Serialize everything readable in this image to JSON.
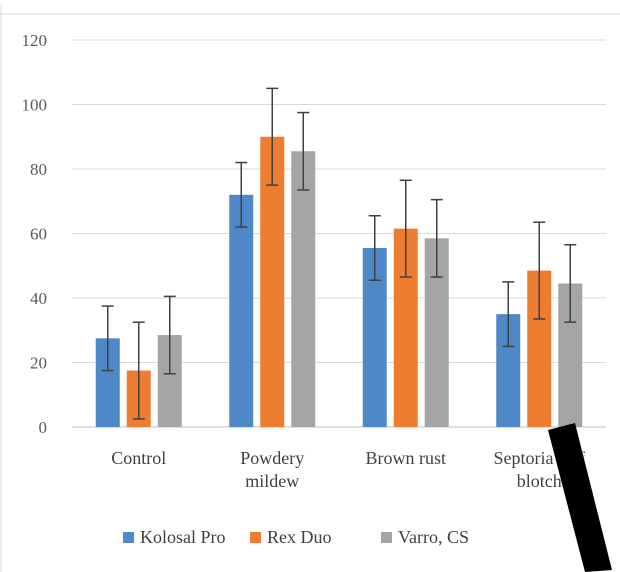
{
  "chart_data": {
    "type": "bar",
    "categories": [
      [
        "Control"
      ],
      [
        "Powdery",
        "mildew"
      ],
      [
        "Brown rust"
      ],
      [
        "Septoria leaf",
        "blotch"
      ]
    ],
    "series": [
      {
        "name": "Kolosal Pro",
        "color": "#4f88c6",
        "values": [
          27.5,
          72,
          55.5,
          35
        ],
        "errors": [
          10,
          10,
          10,
          10
        ]
      },
      {
        "name": "Rex Duo",
        "color": "#ed7d31",
        "values": [
          17.5,
          90,
          61.5,
          48.5
        ],
        "errors": [
          15,
          15,
          15,
          15
        ]
      },
      {
        "name": "Varro, CS",
        "color": "#a5a5a5",
        "values": [
          28.5,
          85.5,
          58.5,
          44.5
        ],
        "errors": [
          12,
          12,
          12,
          12
        ]
      }
    ],
    "yticks": [
      0,
      20,
      40,
      60,
      80,
      100,
      120
    ],
    "ylim": [
      0,
      120
    ],
    "grid": true,
    "legend": "bottom",
    "title": "",
    "xlabel": "",
    "ylabel": ""
  }
}
